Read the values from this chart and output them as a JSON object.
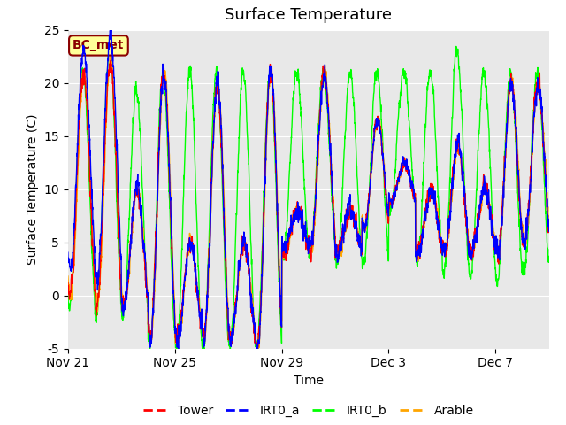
{
  "title": "Surface Temperature",
  "xlabel": "Time",
  "ylabel": "Surface Temperature (C)",
  "ylim": [
    -5,
    25
  ],
  "series": [
    "Tower",
    "IRT0_a",
    "IRT0_b",
    "Arable"
  ],
  "colors": [
    "red",
    "blue",
    "lime",
    "orange"
  ],
  "annotation_text": "BC_met",
  "annotation_color": "#8B0000",
  "annotation_bg": "#FFFF99",
  "background_color": "#e8e8e8",
  "xtick_labels": [
    "Nov 21",
    "Nov 25",
    "Nov 29",
    "Dec 3",
    "Dec 7"
  ],
  "title_fontsize": 13,
  "legend_fontsize": 10,
  "axis_fontsize": 10,
  "day_peaks": [
    21,
    22,
    10,
    21,
    5,
    20,
    5,
    21,
    8,
    21,
    8,
    21,
    14,
    10,
    14,
    10,
    20,
    20
  ],
  "day_mins": [
    0,
    -1,
    -1,
    -4,
    -4,
    -4,
    -4,
    -5,
    4,
    4,
    4,
    4,
    8,
    4,
    4,
    4,
    4,
    5
  ],
  "green_peaks": [
    21,
    23,
    19,
    21,
    21,
    21,
    21,
    21,
    21,
    21,
    21,
    21,
    21,
    21,
    23,
    21,
    21,
    21
  ],
  "green_mins": [
    -1,
    -2,
    -2,
    -5,
    -5,
    -5,
    -5,
    -5,
    4,
    4,
    3,
    3,
    8,
    3,
    2,
    2,
    1,
    2
  ]
}
